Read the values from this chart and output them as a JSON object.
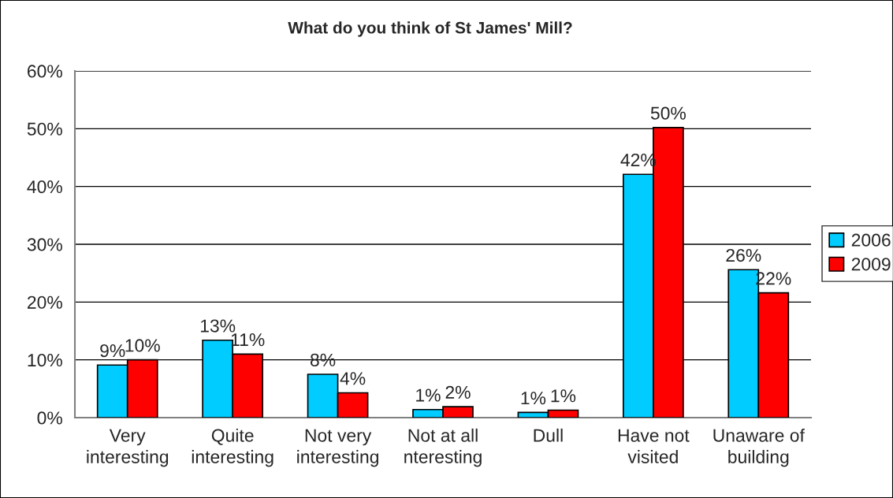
{
  "chart_data": {
    "type": "bar",
    "title": "What do you think of St James' Mill?",
    "categories": [
      "Very\ninteresting",
      "Quite\ninteresting",
      "Not very\ninteresting",
      "Not at all\nnteresting",
      "Dull",
      "Have not\nvisited",
      "Unaware of\nbuilding"
    ],
    "series": [
      {
        "name": "2006",
        "color": "#00ccff",
        "values": [
          9.1,
          13.4,
          7.5,
          1.4,
          0.9,
          42.1,
          25.6
        ],
        "value_labels": [
          "9%",
          "13%",
          "8%",
          "1%",
          "1%",
          "42%",
          "26%"
        ]
      },
      {
        "name": "2009",
        "color": "#ff0000",
        "values": [
          10.0,
          11.0,
          4.3,
          1.9,
          1.3,
          50.2,
          21.6
        ],
        "value_labels": [
          "10%",
          "11%",
          "4%",
          "2%",
          "1%",
          "50%",
          "22%"
        ]
      }
    ],
    "ylim": [
      0,
      60
    ],
    "yticks": [
      {
        "value": 0,
        "label": "0%"
      },
      {
        "value": 10,
        "label": "10%"
      },
      {
        "value": 20,
        "label": "20%"
      },
      {
        "value": 30,
        "label": "30%"
      },
      {
        "value": 40,
        "label": "40%"
      },
      {
        "value": 50,
        "label": "50%"
      },
      {
        "value": 60,
        "label": "60%"
      }
    ],
    "grid": "y",
    "legend": "right"
  }
}
